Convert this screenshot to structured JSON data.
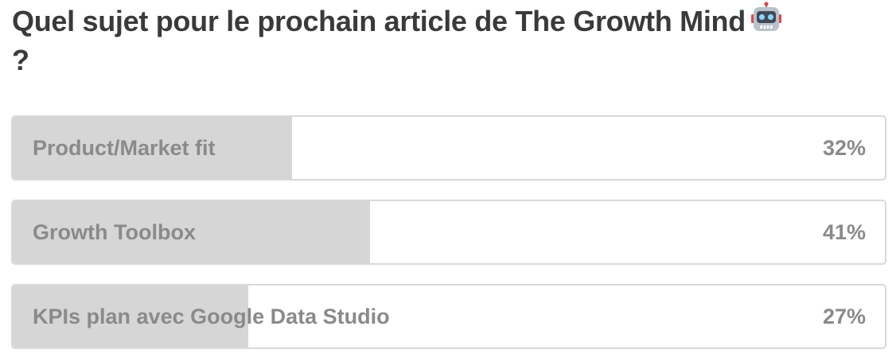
{
  "poll": {
    "question": "Quel sujet pour le prochain article de The Growth Mind",
    "question_suffix": "?",
    "question_icon": "robot-face-icon",
    "colors": {
      "text": "#3a3a3a",
      "option_text": "#8a8a8a",
      "bar_fill": "#d6d6d6",
      "border": "#d9d9d9"
    },
    "options": [
      {
        "label": "Product/Market fit",
        "percent_label": "32%",
        "percent": 32
      },
      {
        "label": "Growth Toolbox",
        "percent_label": "41%",
        "percent": 41
      },
      {
        "label": "KPIs plan avec Google Data Studio",
        "percent_label": "27%",
        "percent": 27
      }
    ]
  }
}
